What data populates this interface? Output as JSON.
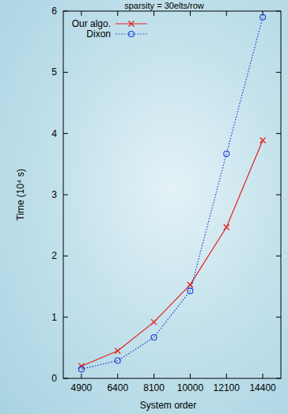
{
  "chart_data": {
    "type": "line",
    "title": "sparsity = 30elts/row",
    "x_label": "System order",
    "y_label": "Time (10⁴ s)",
    "categories": [
      "4900",
      "6400",
      "8100",
      "10000",
      "12100",
      "14400"
    ],
    "series": [
      {
        "name": "Our algo.",
        "color": "#e3201b",
        "marker": "x",
        "line_style": "solid",
        "values": [
          0.2,
          0.45,
          0.92,
          1.53,
          2.47,
          3.89
        ]
      },
      {
        "name": "Dixon",
        "color": "#1a3fd6",
        "marker": "circle",
        "line_style": "dotted",
        "values": [
          0.15,
          0.29,
          0.67,
          1.43,
          3.67,
          5.9
        ]
      }
    ],
    "ylim": [
      0,
      6
    ],
    "yticks": [
      0,
      1,
      2,
      3,
      4,
      5,
      6
    ],
    "legend": "top-left",
    "grid": false
  }
}
